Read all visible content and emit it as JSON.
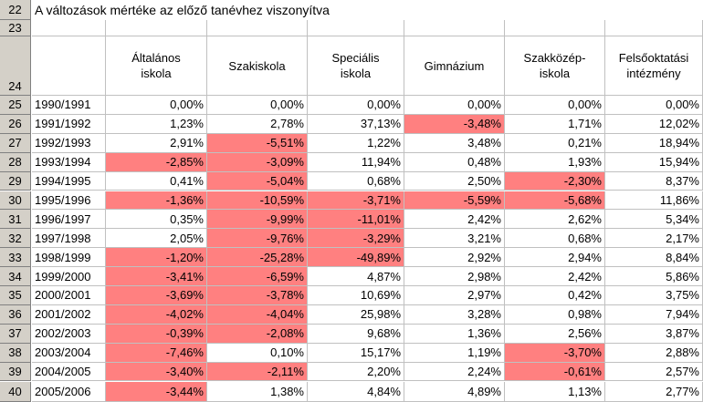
{
  "title": "A változások mértéke az előző tanévhez viszonyítva",
  "row_numbers": [
    "22",
    "23",
    "24",
    "25",
    "26",
    "27",
    "28",
    "29",
    "30",
    "31",
    "32",
    "33",
    "34",
    "35",
    "36",
    "37",
    "38",
    "39",
    "40"
  ],
  "columns": [
    "Általános iskola",
    "Szakiskola",
    "Speciális iskola",
    "Gimnázium",
    "Szakközép-iskola",
    "Felsőoktatási intézmény"
  ],
  "columns_display": [
    [
      "Általános",
      "iskola"
    ],
    [
      "Szakiskola"
    ],
    [
      "Speciális",
      "iskola"
    ],
    [
      "Gimnázium"
    ],
    [
      "Szakközép-",
      "iskola"
    ],
    [
      "Felsőoktatási",
      "intézmény"
    ]
  ],
  "rows": [
    {
      "year": "1990/1991",
      "values": [
        "0,00%",
        "0,00%",
        "0,00%",
        "0,00%",
        "0,00%",
        "0,00%"
      ]
    },
    {
      "year": "1991/1992",
      "values": [
        "1,23%",
        "2,78%",
        "37,13%",
        "-3,48%",
        "1,71%",
        "12,02%"
      ]
    },
    {
      "year": "1992/1993",
      "values": [
        "2,91%",
        "-5,51%",
        "1,22%",
        "3,48%",
        "0,21%",
        "18,94%"
      ]
    },
    {
      "year": "1993/1994",
      "values": [
        "-2,85%",
        "-3,09%",
        "11,94%",
        "0,48%",
        "1,93%",
        "15,94%"
      ]
    },
    {
      "year": "1994/1995",
      "values": [
        "0,41%",
        "-5,04%",
        "0,68%",
        "2,50%",
        "-2,30%",
        "8,37%"
      ]
    },
    {
      "year": "1995/1996",
      "values": [
        "-1,36%",
        "-10,59%",
        "-3,71%",
        "-5,59%",
        "-5,68%",
        "11,86%"
      ]
    },
    {
      "year": "1996/1997",
      "values": [
        "0,35%",
        "-9,99%",
        "-11,01%",
        "2,42%",
        "2,62%",
        "5,34%"
      ]
    },
    {
      "year": "1997/1998",
      "values": [
        "2,05%",
        "-9,76%",
        "-3,29%",
        "3,21%",
        "0,68%",
        "2,17%"
      ]
    },
    {
      "year": "1998/1999",
      "values": [
        "-1,20%",
        "-25,28%",
        "-49,89%",
        "2,92%",
        "2,94%",
        "8,84%"
      ]
    },
    {
      "year": "1999/2000",
      "values": [
        "-3,41%",
        "-6,59%",
        "4,87%",
        "2,98%",
        "2,42%",
        "5,86%"
      ]
    },
    {
      "year": "2000/2001",
      "values": [
        "-3,69%",
        "-3,78%",
        "10,69%",
        "2,97%",
        "0,42%",
        "3,75%"
      ]
    },
    {
      "year": "2001/2002",
      "values": [
        "-4,02%",
        "-4,04%",
        "25,98%",
        "3,28%",
        "0,98%",
        "7,94%"
      ]
    },
    {
      "year": "2002/2003",
      "values": [
        "-0,39%",
        "-2,08%",
        "9,68%",
        "1,36%",
        "2,56%",
        "3,87%"
      ]
    },
    {
      "year": "2003/2004",
      "values": [
        "-7,46%",
        "0,10%",
        "15,17%",
        "1,19%",
        "-3,70%",
        "2,88%"
      ]
    },
    {
      "year": "2004/2005",
      "values": [
        "-3,40%",
        "-2,11%",
        "2,20%",
        "2,24%",
        "-0,61%",
        "2,57%"
      ]
    },
    {
      "year": "2005/2006",
      "values": [
        "-3,44%",
        "1,38%",
        "4,84%",
        "4,89%",
        "1,13%",
        "2,77%"
      ]
    }
  ],
  "colors": {
    "negative_fill": "#ff8080",
    "row_header_bg": "#d4d0c8",
    "grid": "#c0c0c0"
  }
}
